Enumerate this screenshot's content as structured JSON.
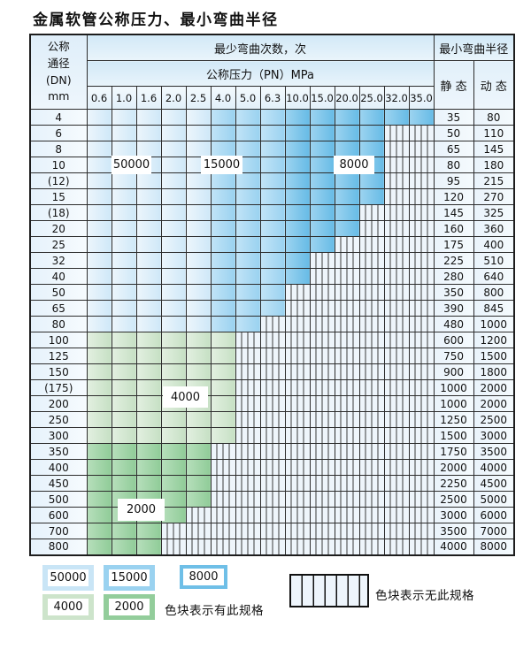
{
  "title": "金属软管公称压力、最小弯曲半径",
  "table": {
    "dn_header_lines": [
      "公称",
      "通径",
      "(DN)",
      "mm"
    ],
    "bend_times_header": "最少弯曲次数，次",
    "pressure_header": "公称压力（PN）MPa",
    "radius_header": "最小弯曲半径",
    "static_header": "静 态",
    "dynamic_header": "动 态",
    "pressures": [
      "0.6",
      "1.0",
      "1.6",
      "2.0",
      "2.5",
      "4.0",
      "5.0",
      "6.3",
      "10.0",
      "15.0",
      "20.0",
      "25.0",
      "32.0",
      "35.0"
    ],
    "rows": [
      {
        "dn": "4",
        "static": "35",
        "dynamic": "80",
        "zone": "blue",
        "last": 13
      },
      {
        "dn": "6",
        "static": "50",
        "dynamic": "110",
        "zone": "blue",
        "last": 11
      },
      {
        "dn": "8",
        "static": "65",
        "dynamic": "145",
        "zone": "blue",
        "last": 11
      },
      {
        "dn": "10",
        "static": "80",
        "dynamic": "180",
        "zone": "blue",
        "last": 11
      },
      {
        "dn": "(12)",
        "static": "95",
        "dynamic": "215",
        "zone": "blue",
        "last": 11
      },
      {
        "dn": "15",
        "static": "120",
        "dynamic": "270",
        "zone": "blue",
        "last": 11
      },
      {
        "dn": "(18)",
        "static": "145",
        "dynamic": "325",
        "zone": "blue",
        "last": 10
      },
      {
        "dn": "20",
        "static": "160",
        "dynamic": "360",
        "zone": "blue",
        "last": 10
      },
      {
        "dn": "25",
        "static": "175",
        "dynamic": "400",
        "zone": "blue",
        "last": 9
      },
      {
        "dn": "32",
        "static": "225",
        "dynamic": "510",
        "zone": "blue",
        "last": 8
      },
      {
        "dn": "40",
        "static": "280",
        "dynamic": "640",
        "zone": "blue",
        "last": 8
      },
      {
        "dn": "50",
        "static": "350",
        "dynamic": "800",
        "zone": "blue",
        "last": 7
      },
      {
        "dn": "65",
        "static": "390",
        "dynamic": "845",
        "zone": "blue",
        "last": 7
      },
      {
        "dn": "80",
        "static": "480",
        "dynamic": "1000",
        "zone": "blue",
        "last": 6
      },
      {
        "dn": "100",
        "static": "600",
        "dynamic": "1200",
        "zone": "g1",
        "last": 5
      },
      {
        "dn": "125",
        "static": "750",
        "dynamic": "1500",
        "zone": "g1",
        "last": 5
      },
      {
        "dn": "150",
        "static": "900",
        "dynamic": "1800",
        "zone": "g1",
        "last": 5
      },
      {
        "dn": "(175)",
        "static": "1000",
        "dynamic": "2000",
        "zone": "g1",
        "last": 5
      },
      {
        "dn": "200",
        "static": "1000",
        "dynamic": "2000",
        "zone": "g1",
        "last": 5
      },
      {
        "dn": "250",
        "static": "1250",
        "dynamic": "2500",
        "zone": "g1",
        "last": 5
      },
      {
        "dn": "300",
        "static": "1500",
        "dynamic": "3000",
        "zone": "g1",
        "last": 5
      },
      {
        "dn": "350",
        "static": "1750",
        "dynamic": "3500",
        "zone": "g2",
        "last": 4
      },
      {
        "dn": "400",
        "static": "2000",
        "dynamic": "4000",
        "zone": "g2",
        "last": 4
      },
      {
        "dn": "450",
        "static": "2250",
        "dynamic": "4500",
        "zone": "g2",
        "last": 4
      },
      {
        "dn": "500",
        "static": "2500",
        "dynamic": "5000",
        "zone": "g2",
        "last": 4
      },
      {
        "dn": "600",
        "static": "3000",
        "dynamic": "6000",
        "zone": "g2",
        "last": 3
      },
      {
        "dn": "700",
        "static": "3500",
        "dynamic": "7000",
        "zone": "g2",
        "last": 2
      },
      {
        "dn": "800",
        "static": "4000",
        "dynamic": "8000",
        "zone": "g2",
        "last": 2
      }
    ],
    "zone_legend_note": "blue zones by pressure column: 0.6-2.5 = 50000 cycles, 4.0-6.3 = 15000, 10.0+ = 8000; light green = 4000, dark green = 2000; striped = no spec"
  },
  "overlays": {
    "v50000": "50000",
    "v15000": "15000",
    "v8000": "8000",
    "v4000": "4000",
    "v2000": "2000"
  },
  "legend": {
    "swatches": [
      {
        "label": "50000",
        "color": "#c9e5f6"
      },
      {
        "label": "15000",
        "color": "#9ad2f0"
      },
      {
        "label": "8000",
        "color": "#6fbfe7"
      },
      {
        "label": "4000",
        "color": "#cde4cb"
      },
      {
        "label": "2000",
        "color": "#93cd9b"
      }
    ],
    "has_spec_text": "色块表示有此规格",
    "no_spec_text": "色块表示无此规格"
  },
  "colors": {
    "cycles_50000": "#cfe8f8",
    "cycles_15000": "#9ad2f0",
    "cycles_8000": "#67bbe6",
    "cycles_4000": "#c6e0c4",
    "cycles_2000": "#90cc98",
    "no_spec_bg": "#eef5fb",
    "grid_line": "#2d2d2d",
    "header_bg": "#d2e9f7"
  }
}
